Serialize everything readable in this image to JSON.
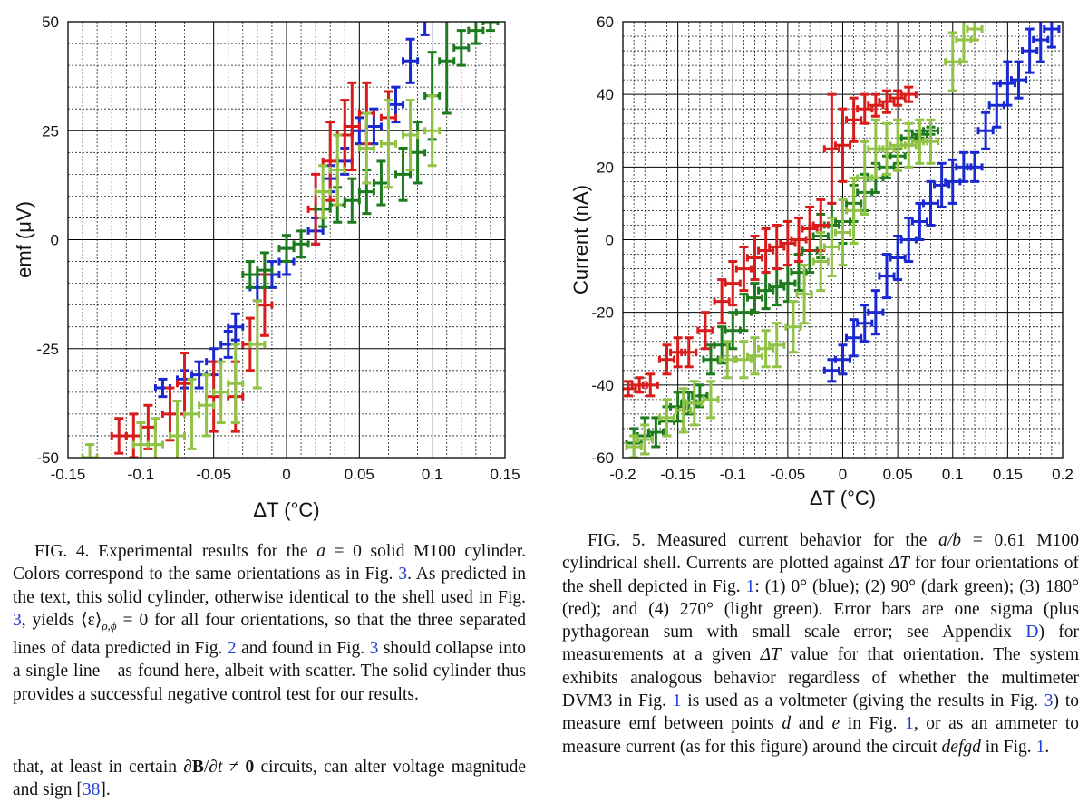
{
  "figure4": {
    "xlabel": "ΔT (°C)",
    "ylabel": "emf (μV)",
    "xlim": [
      -0.15,
      0.15
    ],
    "ylim": [
      -50,
      50
    ],
    "x_ticks": [
      "-0.15",
      "-0.1",
      "-0.05",
      "0",
      "0.05",
      "0.1",
      "0.15"
    ],
    "y_ticks": [
      "50",
      "25",
      "0",
      "-25",
      "-50"
    ]
  },
  "figure5": {
    "xlabel": "ΔT (°C)",
    "ylabel": "Current (nA)",
    "xlim": [
      -0.2,
      0.2
    ],
    "ylim": [
      -60,
      60
    ],
    "x_ticks": [
      "-0.2",
      "-0.15",
      "-0.1",
      "-0.05",
      "0",
      "0.05",
      "0.1",
      "0.15",
      "0.2"
    ],
    "y_ticks": [
      "60",
      "40",
      "20",
      "0",
      "-20",
      "-40",
      "-60"
    ]
  },
  "colors": {
    "blue": "#1a28d0",
    "dark_green": "#1e7a1e",
    "red": "#d81c1c",
    "light_green": "#8fc245",
    "ref_link": "#1f3fd6"
  },
  "chart_data": [
    {
      "type": "scatter",
      "xlabel": "ΔT (°C)",
      "ylabel": "emf (μV)",
      "xlim": [
        -0.15,
        0.15
      ],
      "ylim": [
        -50,
        50
      ],
      "grid": true,
      "series": [
        {
          "color": "blue",
          "x": [
            -0.085,
            -0.07,
            -0.06,
            -0.05,
            -0.04,
            -0.035,
            -0.02,
            -0.01,
            0.0,
            0.02,
            0.03,
            0.04,
            0.05,
            0.06,
            0.075,
            0.085,
            0.095
          ],
          "y": [
            -34,
            -32,
            -31,
            -28,
            -24,
            -20,
            -11,
            -8,
            -5,
            2,
            14,
            18,
            25,
            26,
            31,
            41,
            55
          ],
          "err": [
            2,
            2,
            3,
            3,
            3,
            3,
            3,
            3,
            3,
            3,
            3,
            3,
            3,
            4,
            4,
            5,
            8
          ]
        },
        {
          "color": "red",
          "x": [
            -0.115,
            -0.105,
            -0.095,
            -0.08,
            -0.07,
            -0.05,
            -0.035,
            -0.025,
            -0.015,
            0.02,
            0.03,
            0.04,
            0.045,
            0.055,
            0.07
          ],
          "y": [
            -45,
            -45,
            -43,
            -40,
            -33,
            -36,
            -36,
            -24,
            -15,
            7,
            18,
            24,
            26,
            29,
            28
          ],
          "err": [
            4,
            5,
            5,
            6,
            7,
            8,
            8,
            6,
            7,
            8,
            9,
            8,
            10,
            7,
            6
          ]
        },
        {
          "color": "dark_green",
          "x": [
            -0.025,
            -0.015,
            0.0,
            0.01,
            0.025,
            0.035,
            0.045,
            0.055,
            0.065,
            0.08,
            0.09,
            0.1,
            0.11,
            0.12,
            0.13,
            0.14
          ],
          "y": [
            -8,
            -7,
            -2,
            -1,
            7,
            8,
            9,
            11,
            13,
            15,
            20,
            33,
            41,
            44,
            48,
            50
          ],
          "err": [
            3,
            4,
            3,
            3,
            4,
            4,
            5,
            5,
            5,
            6,
            7,
            10,
            12,
            4,
            3,
            2
          ]
        },
        {
          "color": "light_green",
          "x": [
            -0.135,
            -0.1,
            -0.09,
            -0.075,
            -0.065,
            -0.055,
            -0.045,
            -0.035,
            -0.02,
            0.025,
            0.035,
            0.055,
            0.07,
            0.085,
            0.1
          ],
          "y": [
            -50,
            -47,
            -47,
            -45,
            -40,
            -38,
            -35,
            -33,
            -24,
            11,
            16,
            21,
            22,
            24,
            25
          ],
          "err": [
            3,
            5,
            6,
            8,
            8,
            7,
            7,
            9,
            10,
            6,
            8,
            8,
            10,
            8,
            8
          ]
        }
      ]
    },
    {
      "type": "scatter",
      "xlabel": "ΔT (°C)",
      "ylabel": "Current (nA)",
      "xlim": [
        -0.2,
        0.2
      ],
      "ylim": [
        -60,
        60
      ],
      "grid": true,
      "series": [
        {
          "name": "(1) 0° (blue)",
          "color": "blue",
          "x": [
            -0.01,
            0.0,
            0.01,
            0.02,
            0.03,
            0.04,
            0.05,
            0.06,
            0.07,
            0.08,
            0.09,
            0.1,
            0.11,
            0.12,
            0.13,
            0.14,
            0.15,
            0.16,
            0.17,
            0.18,
            0.19
          ],
          "y": [
            -36,
            -33,
            -27,
            -23,
            -20,
            -10,
            -5,
            0,
            5,
            10,
            15,
            16,
            20,
            20,
            30,
            37,
            43,
            44,
            52,
            55,
            58
          ],
          "err": [
            3,
            4,
            5,
            5,
            6,
            6,
            6,
            6,
            5,
            6,
            6,
            6,
            4,
            4,
            5,
            6,
            6,
            5,
            6,
            6,
            5
          ]
        },
        {
          "name": "(2) 90° (dark green)",
          "color": "dark_green",
          "x": [
            -0.19,
            -0.18,
            -0.17,
            -0.16,
            -0.15,
            -0.14,
            -0.13,
            -0.12,
            -0.11,
            -0.1,
            -0.09,
            -0.08,
            -0.07,
            -0.06,
            -0.05,
            -0.04,
            -0.03,
            -0.02,
            -0.01,
            0.0,
            0.01,
            0.02,
            0.03,
            0.04,
            0.05,
            0.06,
            0.07,
            0.08
          ],
          "y": [
            -56,
            -54,
            -53,
            -50,
            -46,
            -45,
            -43,
            -33,
            -29,
            -25,
            -20,
            -16,
            -14,
            -13,
            -12,
            -9,
            -3,
            1,
            4,
            5,
            10,
            13,
            17,
            20,
            23,
            28,
            29,
            30
          ],
          "err": [
            4,
            5,
            4,
            4,
            4,
            3,
            3,
            4,
            5,
            5,
            5,
            4,
            5,
            5,
            5,
            5,
            6,
            6,
            6,
            6,
            5,
            5,
            4,
            3,
            2,
            2,
            1,
            1
          ]
        },
        {
          "name": "(3) 180° (red)",
          "color": "red",
          "x": [
            -0.195,
            -0.185,
            -0.175,
            -0.16,
            -0.15,
            -0.14,
            -0.125,
            -0.11,
            -0.1,
            -0.09,
            -0.08,
            -0.07,
            -0.06,
            -0.05,
            -0.04,
            -0.03,
            -0.02,
            -0.01,
            0.0,
            0.01,
            0.02,
            0.03,
            0.04,
            0.05,
            0.06
          ],
          "y": [
            -41,
            -40,
            -40,
            -33,
            -31,
            -31,
            -25,
            -17,
            -12,
            -8,
            -5,
            -3,
            -2,
            -1,
            0,
            3,
            4,
            25,
            26,
            33,
            36,
            37,
            38,
            39,
            40
          ],
          "err": [
            2,
            2,
            3,
            4,
            4,
            4,
            5,
            6,
            6,
            6,
            6,
            6,
            6,
            6,
            6,
            6,
            7,
            15,
            10,
            6,
            4,
            3,
            3,
            2,
            2
          ]
        },
        {
          "name": "(4) 270° (light green)",
          "color": "light_green",
          "x": [
            -0.19,
            -0.18,
            -0.16,
            -0.145,
            -0.135,
            -0.12,
            -0.105,
            -0.09,
            -0.08,
            -0.07,
            -0.06,
            -0.045,
            -0.035,
            -0.02,
            -0.01,
            0.0,
            0.01,
            0.02,
            0.03,
            0.04,
            0.05,
            0.06,
            0.07,
            0.08,
            0.1,
            0.11,
            0.12
          ],
          "y": [
            -57,
            -55,
            -49,
            -47,
            -45,
            -44,
            -33,
            -33,
            -32,
            -30,
            -29,
            -24,
            -15,
            -6,
            -2,
            2,
            8,
            17,
            25,
            25,
            26,
            26,
            27,
            27,
            49,
            55,
            58
          ],
          "err": [
            3,
            4,
            5,
            6,
            6,
            5,
            5,
            5,
            5,
            5,
            6,
            7,
            8,
            8,
            8,
            9,
            9,
            10,
            8,
            7,
            7,
            6,
            6,
            6,
            8,
            6,
            3
          ]
        }
      ]
    }
  ],
  "captions": {
    "fig4": {
      "label": "FIG. 4.",
      "t1": "Experimental results for the ",
      "m_a0": "a",
      "t2": " = 0 solid M100 cylinder. Colors correspond to the same orientations as in Fig. ",
      "r1": "3",
      "t3": ". As predicted in the text, this solid cylinder, otherwise identical to the shell used in Fig. ",
      "r2": "3",
      "t4": ", yields ⟨ε⟩",
      "t4sub": "ρ,ϕ",
      "t5": " = 0 for all four orientations, so that the three separated lines of data predicted in Fig. ",
      "r3": "2",
      "t6": " and found in Fig. ",
      "r4": "3",
      "t7": " should collapse into a single line—as found here, albeit with scatter. The solid cylinder thus provides a successful negative control test for our results."
    },
    "fig5": {
      "label": "FIG. 5.",
      "t1": "Measured current behavior for the ",
      "m_ab": "a/b",
      "t2": " = 0.61 M100 cylindrical shell. Currents are plotted against ",
      "m_dt": "ΔT",
      "t3": " for four orientations of the shell depicted in Fig. ",
      "r1": "1",
      "t4": ": (1) 0° (blue); (2) 90° (dark green); (3) 180° (red); and (4) 270° (light green). Error bars are one sigma (plus pythagorean sum with small scale error; see Appendix ",
      "r2": "D",
      "t5": ") for measurements at a given ",
      "m_dt2": "ΔT",
      "t6": " value for that orientation. The system exhibits analogous behavior regardless of whether the multimeter DVM3 in Fig. ",
      "r3": "1",
      "t7": " is used as a voltmeter (giving the results in Fig. ",
      "r4": "3",
      "t8": ") to measure emf between points ",
      "m_d": "d",
      "t9": " and ",
      "m_e": "e",
      "t10": " in Fig. ",
      "r5": "1",
      "t11": ", or as an ammeter to measure current (as for this figure) around the circuit ",
      "m_defgd": "defgd",
      "t12": " in Fig. ",
      "r6": "1",
      "t13": "."
    }
  },
  "body_text": {
    "t1": "that, at least in certain ∂",
    "bold_B": "B",
    "t2": "/∂",
    "m_t": "t",
    "t3": " ≠ ",
    "bold_0": "0",
    "t4": " circuits, can alter voltage magnitude and sign [",
    "r1": "38",
    "t5": "]."
  }
}
